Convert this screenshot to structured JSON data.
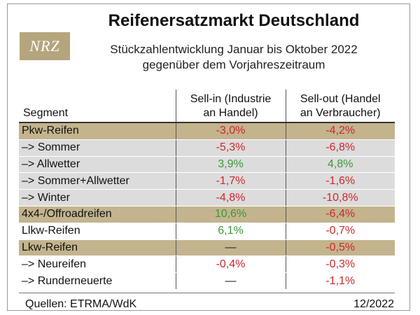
{
  "header": {
    "logo_text": "NRZ",
    "title": "Reifenersatzmarkt Deutschland",
    "subtitle_line1": "Stückzahlentwicklung Januar bis Oktober 2022",
    "subtitle_line2": "gegenüber dem Vorjahreszeitraum"
  },
  "chart_data": {
    "type": "table",
    "title": "Reifenersatzmarkt Deutschland",
    "columns": [
      "Segment",
      "Sell-in (Industrie an Handel)",
      "Sell-out (Handel an Verbraucher)"
    ],
    "column_headers": {
      "segment": "Segment",
      "sellin_1": "Sell-in (Industrie",
      "sellin_2": "an Handel)",
      "sellout_1": "Sell-out (Handel",
      "sellout_2": "an Verbraucher)"
    },
    "rows": [
      {
        "label": "Pkw-Reifen",
        "sell_in": "-3,0%",
        "sell_out": "-4,2%",
        "style": "main"
      },
      {
        "label": "–> Sommer",
        "sell_in": "-5,3%",
        "sell_out": "-6,8%",
        "style": "sub"
      },
      {
        "label": "–> Allwetter",
        "sell_in": "3,9%",
        "sell_out": "4,8%",
        "style": "sub"
      },
      {
        "label": "–> Sommer+Allwetter",
        "sell_in": "-1,7%",
        "sell_out": "-1,6%",
        "style": "sub"
      },
      {
        "label": "–> Winter",
        "sell_in": "-4,8%",
        "sell_out": "-10,8%",
        "style": "sub"
      },
      {
        "label": "4x4-/Offroadreifen",
        "sell_in": "10,6%",
        "sell_out": "-6,4%",
        "style": "main"
      },
      {
        "label": "Llkw-Reifen",
        "sell_in": "6,1%",
        "sell_out": "-0,7%",
        "style": "plain"
      },
      {
        "label": "Lkw-Reifen",
        "sell_in": "—",
        "sell_out": "-0,5%",
        "style": "main"
      },
      {
        "label": "–> Neureifen",
        "sell_in": "-0,4%",
        "sell_out": "-0,3%",
        "style": "plain"
      },
      {
        "label": "–> Runderneuerte",
        "sell_in": "—",
        "sell_out": "-1,1%",
        "style": "plain"
      }
    ]
  },
  "colors": {
    "highlight_row": "#c3b48e",
    "sub_row": "#dcdcdc",
    "negative": "#d0262a",
    "positive": "#3a9a34"
  },
  "footer": {
    "source": "Quellen: ETRMA/WdK",
    "date": "12/2022"
  }
}
